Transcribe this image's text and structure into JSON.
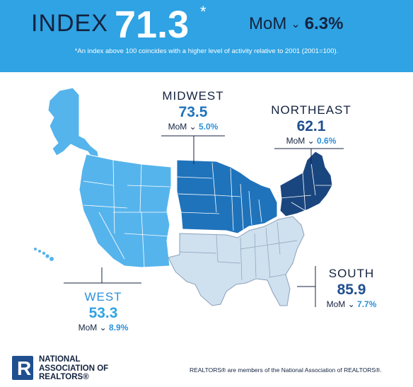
{
  "header": {
    "index_label": "INDEX",
    "index_value": "71.3",
    "asterisk": "*",
    "mom_label": "MoM",
    "mom_value": "6.3%",
    "footnote": "*An index above 100 coincides with a higher level of activity relative to 2001 (2001=100)."
  },
  "regions": {
    "midwest": {
      "name": "MIDWEST",
      "value": "73.5",
      "mom_label": "MoM",
      "mom_value": "5.0%"
    },
    "northeast": {
      "name": "NORTHEAST",
      "value": "62.1",
      "mom_label": "MoM",
      "mom_value": "0.6%"
    },
    "south": {
      "name": "SOUTH",
      "value": "85.9",
      "mom_label": "MoM",
      "mom_value": "7.7%"
    },
    "west": {
      "name": "WEST",
      "value": "53.3",
      "mom_label": "MoM",
      "mom_value": "8.9%"
    }
  },
  "colors": {
    "header_bg": "#2fa3e3",
    "west": "#56b4ec",
    "midwest": "#1f73bb",
    "northeast": "#1a467f",
    "south": "#cfe0ef",
    "dark_text": "#14233f"
  },
  "icons": {
    "change_direction": "chevron-down-icon"
  },
  "logo": {
    "mark": "R",
    "line1": "NATIONAL",
    "line2": "ASSOCIATION OF",
    "line3": "REALTORS®"
  },
  "footer": {
    "note": "REALTORS® are members of the National Association of REALTORS®."
  }
}
